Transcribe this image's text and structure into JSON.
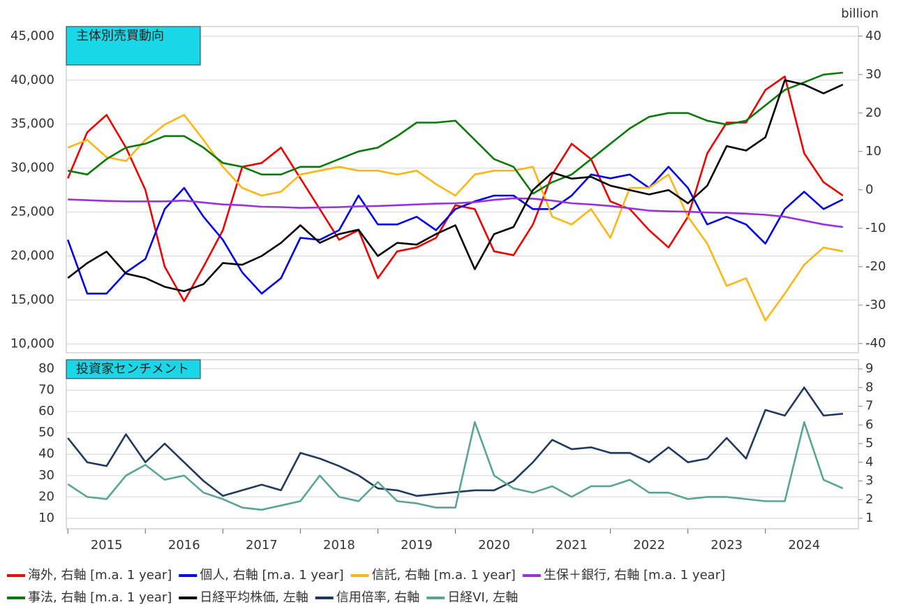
{
  "chart_data": [
    {
      "type": "line",
      "title": "主体別売買動向",
      "y2label": "billion",
      "x": [
        2015,
        2015.25,
        2015.5,
        2015.75,
        2016,
        2016.25,
        2016.5,
        2016.75,
        2017,
        2017.25,
        2017.5,
        2017.75,
        2018,
        2018.25,
        2018.5,
        2018.75,
        2019,
        2019.25,
        2019.5,
        2019.75,
        2020,
        2020.25,
        2020.5,
        2020.75,
        2021,
        2021.25,
        2021.5,
        2021.75,
        2022,
        2022.25,
        2022.5,
        2022.75,
        2023,
        2023.25,
        2023.5,
        2023.75,
        2024,
        2024.25,
        2024.5,
        2024.75,
        2025
      ],
      "xlim": [
        2014.98,
        2025.2
      ],
      "ylim": [
        9000,
        46100
      ],
      "yticks": [
        {
          "value": 10000,
          "label": "10,000"
        },
        {
          "value": 15000,
          "label": "15,000"
        },
        {
          "value": 20000,
          "label": "20,000"
        },
        {
          "value": 25000,
          "label": "25,000"
        },
        {
          "value": 30000,
          "label": "30,000"
        },
        {
          "value": 35000,
          "label": "35,000"
        },
        {
          "value": 40000,
          "label": "40,000"
        },
        {
          "value": 45000,
          "label": "45,000"
        }
      ],
      "y2lim": [
        -42.4,
        42.5
      ],
      "y2ticks": [
        -40,
        -30,
        -20,
        -10,
        0,
        10,
        20,
        30,
        40
      ],
      "grid": true,
      "series": [
        {
          "name": "海外, 右軸 [m.a. 1 year]",
          "color": "#ee0000",
          "axis": "y2",
          "values": [
            3,
            15,
            19.5,
            11,
            0,
            -20,
            -29,
            -20,
            -10.5,
            6,
            7,
            11,
            3,
            -5,
            -13,
            -10.5,
            -23,
            -16,
            -15,
            -12.5,
            -4,
            -5,
            -16,
            -17,
            -9,
            4,
            12,
            8,
            -3,
            -5,
            -10.5,
            -15,
            -7,
            9.5,
            17.5,
            17.5,
            26,
            29.5,
            9.5,
            2,
            -1.5
          ]
        },
        {
          "name": "個人, 右軸 [m.a. 1 year]",
          "color": "#0000ee",
          "axis": "y2",
          "values": [
            -13,
            -27,
            -27,
            -21.5,
            -18,
            -5,
            0.5,
            -7,
            -13,
            -21.5,
            -27,
            -23,
            -12.5,
            -13,
            -10.5,
            -1.5,
            -9,
            -9,
            -7,
            -10.5,
            -5,
            -3,
            -1.5,
            -1.5,
            -5,
            -5,
            -1.5,
            4,
            3,
            4,
            0.5,
            6,
            0.5,
            -9,
            -7,
            -9,
            -14,
            -5,
            -0.5,
            -5,
            -2.5
          ]
        },
        {
          "name": "信託, 右軸 [m.a. 1 year]",
          "color": "#ffb612",
          "axis": "y2",
          "values": [
            11,
            13,
            8.5,
            7.5,
            13,
            17,
            19.5,
            13,
            6,
            0.5,
            -1.5,
            -0.5,
            4,
            5,
            6,
            5,
            5,
            4,
            5,
            1.5,
            -1.5,
            4,
            5,
            5,
            6,
            -7,
            -9,
            -5,
            -12.5,
            0.5,
            0.5,
            4,
            -7,
            -14,
            -25,
            -23,
            -34,
            -27,
            -19.5,
            -15,
            -16
          ]
        },
        {
          "name": "生保＋銀行, 右軸 [m.a. 1 year]",
          "color": "#9b30e0",
          "axis": "y2",
          "values": [
            -2.5,
            -2.7,
            -2.9,
            -3,
            -3,
            -3,
            -2.8,
            -3.3,
            -3.8,
            -4,
            -4.4,
            -4.5,
            -4.7,
            -4.6,
            -4.5,
            -4.3,
            -4.2,
            -4,
            -3.8,
            -3.6,
            -3.5,
            -3.2,
            -2.6,
            -2.2,
            -2.3,
            -2.8,
            -3.5,
            -3.8,
            -4.2,
            -4.8,
            -5.4,
            -5.6,
            -5.7,
            -5.9,
            -6,
            -6.2,
            -6.5,
            -7,
            -8,
            -9,
            -9.7
          ]
        },
        {
          "name": "事法, 右軸 [m.a. 1 year]",
          "color": "#0a7a0a",
          "axis": "y2",
          "values": [
            5,
            4,
            8,
            11,
            12,
            14,
            14,
            11,
            7,
            6,
            4,
            4,
            6,
            6,
            8,
            10,
            11,
            14,
            17.5,
            17.5,
            18,
            13,
            8,
            6,
            -1,
            2,
            4,
            8,
            12,
            16,
            19,
            20,
            20,
            18,
            17,
            18,
            22,
            26,
            28,
            30,
            30.5
          ]
        },
        {
          "name": "日経平均株価, 左軸",
          "color": "#000000",
          "axis": "y",
          "values": [
            17500,
            19200,
            20500,
            18000,
            17500,
            16500,
            16000,
            16800,
            19200,
            19000,
            20000,
            21500,
            23500,
            21500,
            22500,
            23000,
            20000,
            21500,
            21300,
            22500,
            23500,
            18500,
            22500,
            23300,
            27500,
            29500,
            28800,
            29000,
            28000,
            27500,
            27000,
            27500,
            26000,
            28000,
            32500,
            32000,
            33500,
            40000,
            39500,
            38500,
            39500
          ]
        }
      ]
    },
    {
      "type": "line",
      "title": "投資家センチメント",
      "x": [
        2015,
        2015.25,
        2015.5,
        2015.75,
        2016,
        2016.25,
        2016.5,
        2016.75,
        2017,
        2017.25,
        2017.5,
        2017.75,
        2018,
        2018.25,
        2018.5,
        2018.75,
        2019,
        2019.25,
        2019.5,
        2019.75,
        2020,
        2020.25,
        2020.5,
        2020.75,
        2021,
        2021.25,
        2021.5,
        2021.75,
        2022,
        2022.25,
        2022.5,
        2022.75,
        2023,
        2023.25,
        2023.5,
        2023.75,
        2024,
        2024.25,
        2024.5,
        2024.75,
        2025
      ],
      "xlim": [
        2014.98,
        2025.2
      ],
      "xticks": [
        2015,
        2016,
        2017,
        2018,
        2019,
        2020,
        2021,
        2022,
        2023,
        2024
      ],
      "ylim": [
        5.1,
        84.2
      ],
      "yticks": [
        10,
        20,
        30,
        40,
        50,
        60,
        70,
        80
      ],
      "y2lim": [
        0.44,
        9.49
      ],
      "y2ticks": [
        1,
        2,
        3,
        4,
        5,
        6,
        7,
        8,
        9
      ],
      "grid": true,
      "series": [
        {
          "name": "信用倍率, 右軸",
          "color": "#1f3a5f",
          "axis": "y2",
          "values": [
            5.3,
            4.0,
            3.8,
            5.5,
            4.0,
            5.0,
            4.0,
            3.0,
            2.2,
            2.5,
            2.8,
            2.5,
            4.5,
            4.2,
            3.8,
            3.3,
            2.6,
            2.5,
            2.2,
            2.3,
            2.4,
            2.5,
            2.5,
            3.0,
            4.0,
            5.2,
            4.7,
            4.8,
            4.5,
            4.5,
            4.0,
            4.8,
            4.0,
            4.2,
            5.3,
            4.2,
            6.8,
            6.5,
            8.0,
            6.5,
            6.6
          ]
        },
        {
          "name": "日経VI, 左軸",
          "color": "#5aa592",
          "axis": "y",
          "values": [
            26,
            20,
            19,
            30,
            35,
            28,
            30,
            22,
            19,
            15,
            14,
            16,
            18,
            30,
            20,
            18,
            27,
            18,
            17,
            15,
            15,
            55,
            30,
            24,
            22,
            25,
            20,
            25,
            25,
            28,
            22,
            22,
            19,
            20,
            20,
            19,
            18,
            18,
            55,
            28,
            24
          ]
        }
      ]
    }
  ]
}
